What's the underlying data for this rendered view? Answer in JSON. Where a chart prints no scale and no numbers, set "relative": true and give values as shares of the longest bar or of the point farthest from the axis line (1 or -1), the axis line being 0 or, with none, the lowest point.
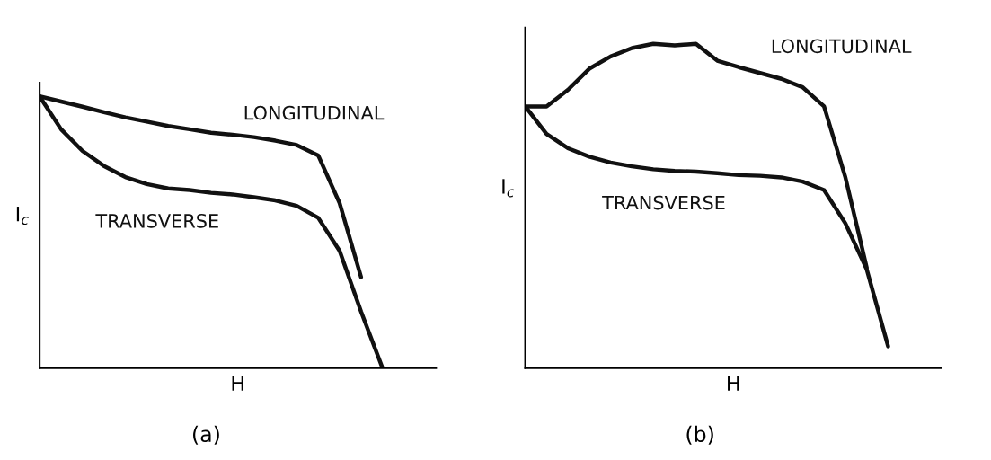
{
  "chart_data": [
    {
      "type": "line",
      "title": "(a)",
      "xlabel": "H",
      "ylabel": "I$_{c}$",
      "relative": true,
      "categories": [
        null,
        null,
        null,
        null,
        null,
        null,
        null,
        null,
        null,
        null,
        null,
        null,
        null,
        null,
        null,
        null,
        null
      ],
      "series": [
        {
          "name": "LONGITUDINAL",
          "color": "#111111",
          "values": [
            1,
            0.981,
            0.962,
            0.942,
            0.923,
            0.907,
            0.891,
            0.879,
            0.866,
            0.859,
            0.85,
            0.837,
            0.821,
            0.783,
            0.607,
            0.335,
            null
          ]
        },
        {
          "name": "TRANSVERSE",
          "color": "#111111",
          "values": [
            1,
            0.879,
            0.799,
            0.744,
            0.703,
            0.677,
            0.661,
            0.655,
            0.645,
            0.639,
            0.629,
            0.617,
            0.597,
            0.553,
            0.431,
            0.208,
            0
          ]
        }
      ]
    },
    {
      "type": "line",
      "title": "(b)",
      "xlabel": "H",
      "ylabel": "I$_{c}$",
      "relative": true,
      "categories": [
        null,
        null,
        null,
        null,
        null,
        null,
        null,
        null,
        null,
        null,
        null,
        null,
        null,
        null,
        null,
        null,
        null,
        null
      ],
      "series": [
        {
          "name": "LONGITUDINAL",
          "color": "#111111",
          "values": [
            0.807,
            0.807,
            0.858,
            0.923,
            0.961,
            0.987,
            1.0,
            0.995,
            1.0,
            0.948,
            0.928,
            0.91,
            0.892,
            0.866,
            0.807,
            0.588,
            0.309,
            null
          ]
        },
        {
          "name": "TRANSVERSE",
          "color": "#111111",
          "values": [
            0.807,
            0.722,
            0.678,
            0.652,
            0.634,
            0.622,
            0.613,
            0.608,
            0.606,
            0.601,
            0.595,
            0.593,
            0.588,
            0.575,
            0.549,
            0.446,
            0.304,
            0.067
          ]
        }
      ]
    }
  ]
}
